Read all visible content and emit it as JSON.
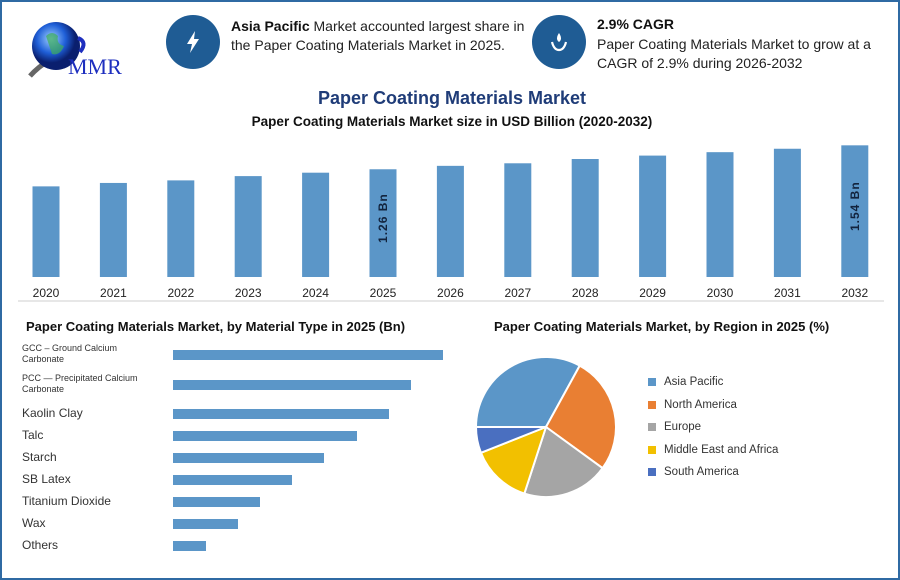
{
  "logo": {
    "text": "MMR",
    "icon": "globe-icon"
  },
  "highlights": [
    {
      "icon": "lightning-icon",
      "bold": "Asia Pacific",
      "text": " Market accounted largest share in the Paper Coating Materials Market in 2025."
    },
    {
      "icon": "drop-hand-icon",
      "bold": "2.9% CAGR",
      "text": "Paper Coating Materials Market to grow at a CAGR of 2.9% during 2026-2032"
    }
  ],
  "title": "Paper Coating Materials Market",
  "colors": {
    "bar": "#5b96c8",
    "accent": "#1f5c94",
    "title": "#1f3c78",
    "frame": "#2f6aa3"
  },
  "chart_data": [
    {
      "type": "bar",
      "title": "Paper Coating Materials Market size in USD Billion (2020-2032)",
      "categories": [
        "2020",
        "2021",
        "2022",
        "2023",
        "2024",
        "2025",
        "2026",
        "2027",
        "2028",
        "2029",
        "2030",
        "2031",
        "2032"
      ],
      "values": [
        1.06,
        1.1,
        1.13,
        1.18,
        1.22,
        1.26,
        1.3,
        1.33,
        1.38,
        1.42,
        1.46,
        1.5,
        1.54
      ],
      "data_labels": {
        "2025": "1.26 Bn",
        "2032": "1.54 Bn"
      },
      "grid": false,
      "ylim": [
        0,
        1.6
      ]
    },
    {
      "type": "bar",
      "orientation": "horizontal",
      "title": "Paper Coating Materials Market, by Material Type in 2025 (Bn)",
      "categories": [
        "GCC – Ground Calcium Carbonate",
        "PCC — Precipitated Calcium Carbonate",
        "Kaolin Clay",
        "Talc",
        "Starch",
        "SB Latex",
        "Titanium Dioxide",
        "Wax",
        "Others"
      ],
      "values": [
        27,
        23.8,
        21.6,
        18.4,
        15.1,
        11.9,
        8.7,
        6.5,
        3.3
      ],
      "grid": false
    },
    {
      "type": "pie",
      "title": "Paper Coating Materials Market, by Region in 2025 (%)",
      "categories": [
        "Asia Pacific",
        "North America",
        "Europe",
        "Middle East and Africa",
        "South America"
      ],
      "values": [
        33,
        27,
        20,
        14,
        6
      ],
      "colors": [
        "#5b96c8",
        "#e97f33",
        "#a5a5a5",
        "#f2c000",
        "#4a6fc0"
      ],
      "legend": "right"
    }
  ]
}
